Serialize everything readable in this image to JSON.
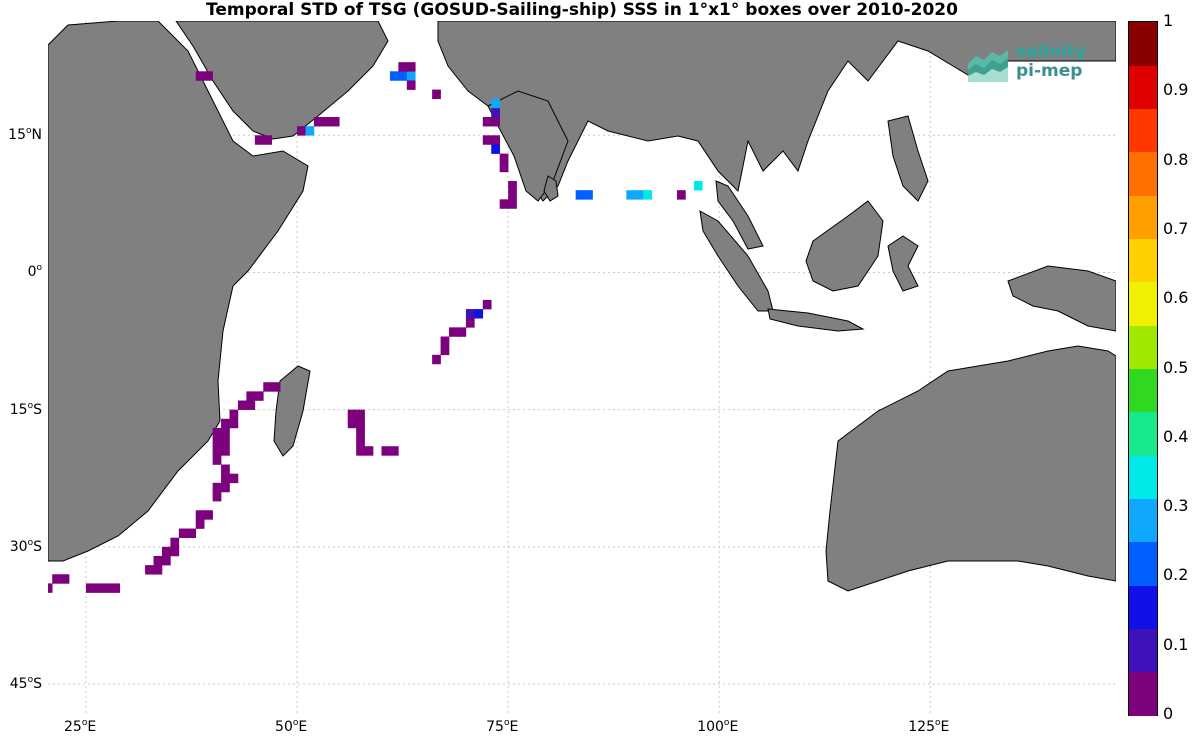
{
  "title": "Temporal STD of TSG (GOSUD-Sailing-ship) SSS in 1°x1° boxes over 2010-2020",
  "logo": {
    "line1": "salinity",
    "line2": "pi-mep"
  },
  "lat_labels": [
    {
      "text": "15",
      "suffix": "N"
    },
    {
      "text": "0",
      "suffix": ""
    },
    {
      "text": "15",
      "suffix": "S"
    },
    {
      "text": "30",
      "suffix": "S"
    },
    {
      "text": "45",
      "suffix": "S"
    }
  ],
  "lon_labels": [
    {
      "text": "25",
      "suffix": "E"
    },
    {
      "text": "50",
      "suffix": "E"
    },
    {
      "text": "75",
      "suffix": "E"
    },
    {
      "text": "100",
      "suffix": "E"
    },
    {
      "text": "125",
      "suffix": "E"
    }
  ],
  "colorbar": {
    "ticks": [
      "1",
      "0.9",
      "0.8",
      "0.7",
      "0.6",
      "0.5",
      "0.4",
      "0.3",
      "0.2",
      "0.1",
      "0"
    ],
    "colors": [
      "#7d007d",
      "#3d12b8",
      "#1010e8",
      "#0060ff",
      "#10a8ff",
      "#00e8e8",
      "#18e88c",
      "#30d820",
      "#a0e800",
      "#f0f000",
      "#ffd000",
      "#ffa000",
      "#ff7000",
      "#ff3800",
      "#e00000",
      "#8a0000"
    ]
  },
  "colors": {
    "land": "#808080",
    "coast": "#000000",
    "grid": "#c8c8c8",
    "ocean": "#ffffff"
  },
  "map_extent": {
    "lon_min": 20.5,
    "lon_max": 147,
    "lat_min": -48.5,
    "lat_max": 27.5
  },
  "chart_data": {
    "type": "heatmap",
    "variable": "Temporal STD of SSS",
    "cell_size_deg": 1,
    "cells": [
      [
        38,
        21,
        0.03
      ],
      [
        39,
        21,
        0.03
      ],
      [
        61,
        21,
        0.2
      ],
      [
        62,
        21,
        0.2
      ],
      [
        63,
        21,
        0.25
      ],
      [
        62,
        22,
        0.03
      ],
      [
        63,
        22,
        0.03
      ],
      [
        63,
        20,
        0.03
      ],
      [
        66,
        19,
        0.03
      ],
      [
        45,
        14,
        0.03
      ],
      [
        46,
        14,
        0.03
      ],
      [
        50,
        15,
        0.03
      ],
      [
        51,
        15,
        0.25
      ],
      [
        52,
        16,
        0.03
      ],
      [
        53,
        16,
        0.03
      ],
      [
        54,
        16,
        0.03
      ],
      [
        72,
        16,
        0.03
      ],
      [
        73,
        16,
        0.03
      ],
      [
        73,
        17,
        0.1
      ],
      [
        73,
        18,
        0.3
      ],
      [
        72,
        14,
        0.03
      ],
      [
        73,
        14,
        0.03
      ],
      [
        73,
        13,
        0.15
      ],
      [
        74,
        12,
        0.03
      ],
      [
        74,
        11,
        0.03
      ],
      [
        75,
        9,
        0.03
      ],
      [
        75,
        8,
        0.03
      ],
      [
        74,
        7,
        0.03
      ],
      [
        75,
        7,
        0.03
      ],
      [
        83,
        8,
        0.2
      ],
      [
        84,
        8,
        0.2
      ],
      [
        89,
        8,
        0.3
      ],
      [
        90,
        8,
        0.3
      ],
      [
        91,
        8,
        0.35
      ],
      [
        95,
        8,
        0.03
      ],
      [
        97,
        9,
        0.35
      ],
      [
        72,
        -4,
        0.03
      ],
      [
        71,
        -5,
        0.15
      ],
      [
        70,
        -5,
        0.1
      ],
      [
        70,
        -6,
        0.03
      ],
      [
        69,
        -7,
        0.03
      ],
      [
        68,
        -7,
        0.03
      ],
      [
        67,
        -8,
        0.03
      ],
      [
        67,
        -9,
        0.03
      ],
      [
        66,
        -10,
        0.03
      ],
      [
        46,
        -13,
        0.03
      ],
      [
        47,
        -13,
        0.03
      ],
      [
        44,
        -14,
        0.03
      ],
      [
        45,
        -14,
        0.03
      ],
      [
        43,
        -15,
        0.03
      ],
      [
        44,
        -15,
        0.03
      ],
      [
        42,
        -16,
        0.03
      ],
      [
        41,
        -17,
        0.03
      ],
      [
        42,
        -17,
        0.03
      ],
      [
        40,
        -18,
        0.03
      ],
      [
        41,
        -18,
        0.03
      ],
      [
        40,
        -19,
        0.03
      ],
      [
        41,
        -19,
        0.03
      ],
      [
        40,
        -20,
        0.03
      ],
      [
        41,
        -20,
        0.03
      ],
      [
        40,
        -21,
        0.03
      ],
      [
        41,
        -22,
        0.03
      ],
      [
        41,
        -23,
        0.03
      ],
      [
        42,
        -23,
        0.03
      ],
      [
        40,
        -24,
        0.03
      ],
      [
        41,
        -24,
        0.03
      ],
      [
        40,
        -25,
        0.03
      ],
      [
        38,
        -27,
        0.03
      ],
      [
        39,
        -27,
        0.03
      ],
      [
        38,
        -28,
        0.03
      ],
      [
        36,
        -29,
        0.03
      ],
      [
        37,
        -29,
        0.03
      ],
      [
        35,
        -30,
        0.03
      ],
      [
        34,
        -31,
        0.03
      ],
      [
        35,
        -31,
        0.03
      ],
      [
        33,
        -32,
        0.03
      ],
      [
        34,
        -32,
        0.03
      ],
      [
        32,
        -33,
        0.03
      ],
      [
        33,
        -33,
        0.03
      ],
      [
        21,
        -34,
        0.03
      ],
      [
        22,
        -34,
        0.03
      ],
      [
        20,
        -35,
        0.03
      ],
      [
        25,
        -35,
        0.03
      ],
      [
        26,
        -35,
        0.03
      ],
      [
        27,
        -35,
        0.03
      ],
      [
        28,
        -35,
        0.03
      ],
      [
        56,
        -16,
        0.03
      ],
      [
        57,
        -16,
        0.03
      ],
      [
        56,
        -17,
        0.03
      ],
      [
        57,
        -17,
        0.03
      ],
      [
        57,
        -18,
        0.03
      ],
      [
        57,
        -19,
        0.03
      ],
      [
        57,
        -20,
        0.03
      ],
      [
        58,
        -20,
        0.03
      ],
      [
        60,
        -20,
        0.03
      ],
      [
        61,
        -20,
        0.03
      ]
    ]
  }
}
